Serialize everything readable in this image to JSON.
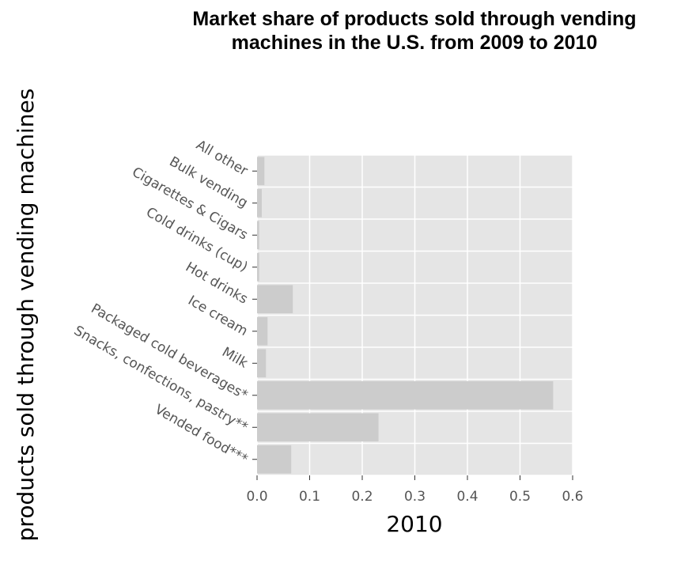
{
  "chart_data": {
    "type": "bar",
    "orientation": "horizontal",
    "title": "Market share of products sold through vending machines in the U.S. from 2009 to 2010",
    "xlabel": "2010",
    "ylabel": "products sold through vending machines",
    "categories": [
      "All other",
      "Bulk vending",
      "Cigarettes & Cigars",
      "Cold drinks (cup)",
      "Hot drinks",
      "Ice cream",
      "Milk",
      "Packaged cold beverages*",
      "Snacks, confections, pastry**",
      "Vended food***"
    ],
    "values": [
      0.014,
      0.009,
      0.004,
      0.004,
      0.068,
      0.02,
      0.017,
      0.563,
      0.231,
      0.065
    ],
    "xlim": [
      0,
      0.6
    ],
    "xticks": [
      "0.0",
      "0.1",
      "0.2",
      "0.3",
      "0.4",
      "0.5",
      "0.6"
    ],
    "grid": true,
    "legend": "none",
    "colors": {
      "bar": "#cccccc",
      "plot_background": "#e5e5e5",
      "gridline": "#ffffff",
      "tick_text": "#555555",
      "title_text": "#000000"
    }
  }
}
